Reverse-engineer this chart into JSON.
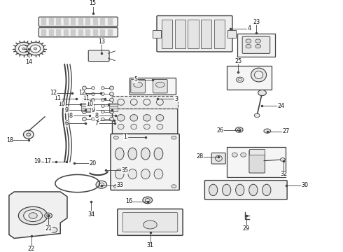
{
  "background_color": "#ffffff",
  "line_color": "#404040",
  "label_color": "#111111",
  "font_size": 5.5,
  "parts_labels": {
    "1": [
      0.425,
      0.545,
      -0.025,
      0.0
    ],
    "2": [
      0.385,
      0.455,
      -0.025,
      0.0
    ],
    "3": [
      0.46,
      0.38,
      0.025,
      0.0
    ],
    "4": [
      0.61,
      0.085,
      0.025,
      0.0
    ],
    "5": [
      0.445,
      0.305,
      -0.02,
      0.0
    ],
    "6": [
      0.245,
      0.485,
      -0.02,
      0.0
    ],
    "7": [
      0.335,
      0.485,
      -0.02,
      0.0
    ],
    "8": [
      0.26,
      0.455,
      -0.02,
      0.0
    ],
    "8b": [
      0.335,
      0.455,
      -0.02,
      0.0
    ],
    "9": [
      0.245,
      0.435,
      -0.02,
      0.0
    ],
    "9b": [
      0.325,
      0.435,
      -0.02,
      0.0
    ],
    "10": [
      0.23,
      0.415,
      -0.02,
      0.0
    ],
    "10b": [
      0.315,
      0.415,
      -0.02,
      0.0
    ],
    "11": [
      0.22,
      0.395,
      -0.02,
      0.0
    ],
    "11b": [
      0.305,
      0.395,
      -0.02,
      0.0
    ],
    "12": [
      0.215,
      0.375,
      -0.02,
      0.0
    ],
    "12b": [
      0.295,
      0.375,
      -0.02,
      0.0
    ],
    "13": [
      0.295,
      0.2,
      0.0,
      -0.02
    ],
    "14": [
      0.075,
      0.175,
      0.0,
      0.025
    ],
    "15": [
      0.27,
      0.025,
      0.0,
      -0.02
    ],
    "16": [
      0.43,
      0.815,
      -0.02,
      0.0
    ],
    "17": [
      0.19,
      0.64,
      -0.02,
      0.0
    ],
    "18": [
      0.085,
      0.555,
      -0.02,
      0.0
    ],
    "19": [
      0.165,
      0.645,
      -0.02,
      0.0
    ],
    "20": [
      0.215,
      0.645,
      0.02,
      0.0
    ],
    "21": [
      0.125,
      0.875,
      0.0,
      0.025
    ],
    "22": [
      0.09,
      0.955,
      0.0,
      0.025
    ],
    "23": [
      0.73,
      0.11,
      0.0,
      -0.025
    ],
    "24": [
      0.765,
      0.42,
      0.025,
      0.0
    ],
    "25": [
      0.695,
      0.275,
      0.0,
      -0.025
    ],
    "26": [
      0.695,
      0.52,
      -0.02,
      0.0
    ],
    "27": [
      0.785,
      0.525,
      0.02,
      0.0
    ],
    "28": [
      0.64,
      0.625,
      -0.02,
      0.0
    ],
    "29": [
      0.72,
      0.87,
      0.0,
      0.025
    ],
    "30": [
      0.84,
      0.745,
      0.025,
      0.0
    ],
    "31": [
      0.445,
      0.94,
      0.0,
      0.025
    ],
    "32": [
      0.825,
      0.61,
      0.0,
      0.025
    ],
    "33": [
      0.305,
      0.755,
      0.02,
      0.0
    ],
    "34": [
      0.265,
      0.815,
      0.0,
      0.025
    ],
    "35": [
      0.305,
      0.685,
      0.02,
      0.0
    ]
  }
}
